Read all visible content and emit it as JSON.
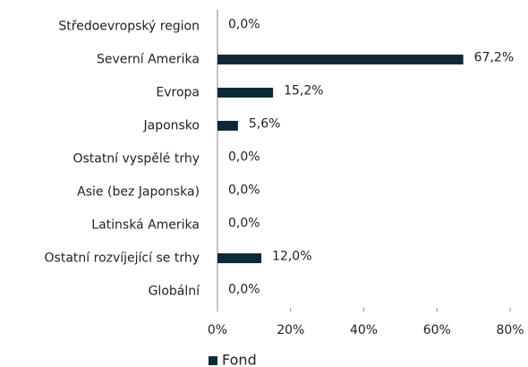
{
  "chart_data": {
    "type": "bar",
    "orientation": "horizontal",
    "categories": [
      "Středoevropský region",
      "Severní Amerika",
      "Evropa",
      "Japonsko",
      "Ostatní vyspělé trhy",
      "Asie (bez Japonska)",
      "Latinská Amerika",
      "Ostatní rozvíjející se trhy",
      "Globální"
    ],
    "series": [
      {
        "name": "Fond",
        "color": "#0d2b36",
        "values": [
          0,
          67.2,
          15.2,
          5.6,
          0,
          0,
          0,
          12,
          0
        ],
        "value_labels": [
          "0,0%",
          "67,2%",
          "15,2%",
          "5,6%",
          "0,0%",
          "0,0%",
          "0,0%",
          "12,0%",
          "0,0%"
        ]
      }
    ],
    "xlim": [
      0,
      80
    ],
    "xticks": [
      {
        "value": 0,
        "label": "0%"
      },
      {
        "value": 20,
        "label": "20%"
      },
      {
        "value": 40,
        "label": "40%"
      },
      {
        "value": 60,
        "label": "60%"
      },
      {
        "value": 80,
        "label": "80%"
      }
    ],
    "legend": "bottom"
  }
}
